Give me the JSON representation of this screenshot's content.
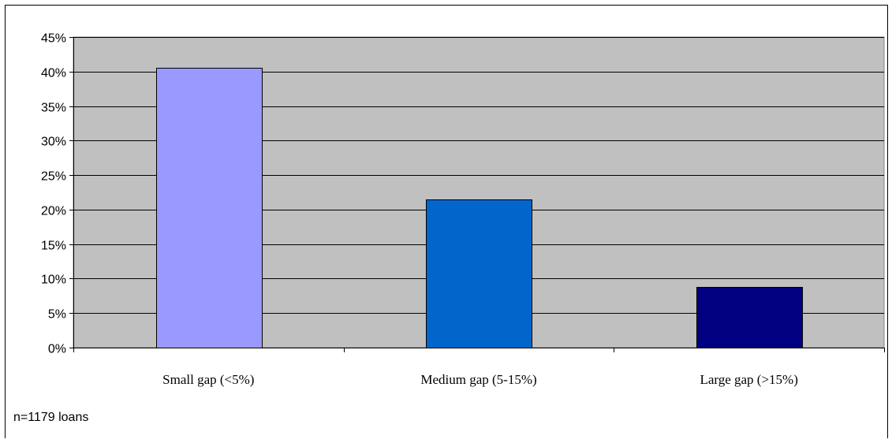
{
  "chart_data": {
    "type": "bar",
    "categories": [
      "Small gap (<5%)",
      "Medium gap (5-15%)",
      "Large gap (>15%)"
    ],
    "values": [
      40.5,
      21.5,
      8.8
    ],
    "bar_colors": [
      "#9999ff",
      "#0066cc",
      "#000080"
    ],
    "plot_background": "#c0c0c0",
    "ylim": [
      0,
      45
    ],
    "yticks": [
      "0%",
      "5%",
      "10%",
      "15%",
      "20%",
      "25%",
      "30%",
      "35%",
      "40%",
      "45%"
    ],
    "ytick_values": [
      0,
      5,
      10,
      15,
      20,
      25,
      30,
      35,
      40,
      45
    ],
    "grid": true,
    "title": "",
    "xlabel": "",
    "ylabel": ""
  },
  "footnote": "n=1179 loans"
}
